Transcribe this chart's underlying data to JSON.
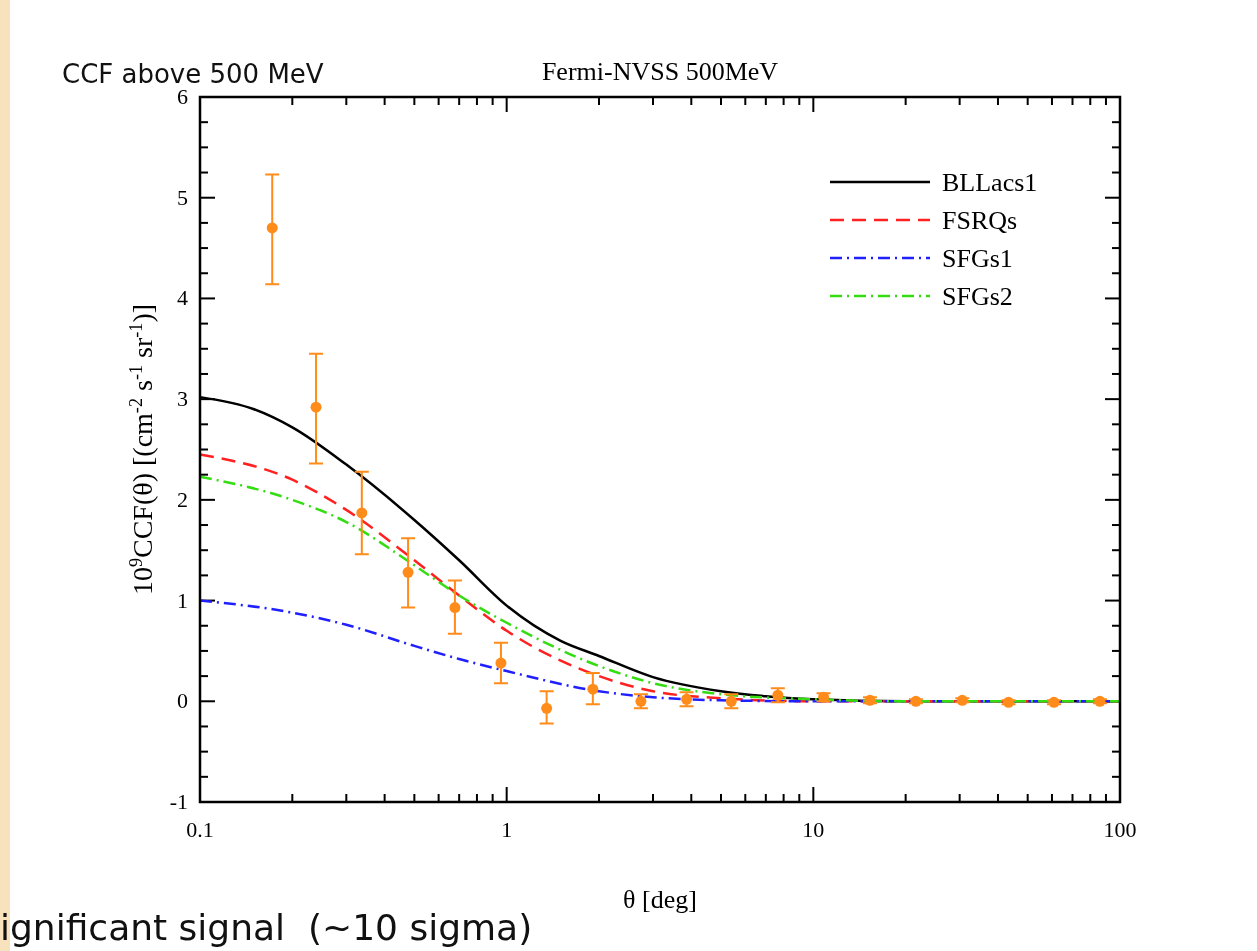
{
  "chart_data": {
    "type": "line",
    "title": "Fermi-NVSS 500MeV",
    "xlabel": "θ [deg]",
    "ylabel": "10$^{9}$CCF(θ) [(cm$^{-2}$ s$^{-1}$ sr$^{-1}$)]",
    "annotations": [
      "CCF above 500 MeV",
      "ignificant signal  (~10 sigma)"
    ],
    "log": "x",
    "legend": "top right",
    "grid": false,
    "xlim": [
      0.1,
      100
    ],
    "xticks": [
      0.1,
      {
        "value": 0.2,
        "label": null
      },
      {
        "value": 0.3,
        "label": null
      },
      {
        "value": 0.4,
        "label": null
      },
      {
        "value": 0.5,
        "label": null
      },
      {
        "value": 0.6,
        "label": null
      },
      {
        "value": 0.7,
        "label": null
      },
      {
        "value": 0.8,
        "label": null
      },
      {
        "value": 0.9,
        "label": null
      },
      1,
      {
        "value": 2,
        "label": null
      },
      {
        "value": 3,
        "label": null
      },
      {
        "value": 4,
        "label": null
      },
      {
        "value": 5,
        "label": null
      },
      {
        "value": 6,
        "label": null
      },
      {
        "value": 7,
        "label": null
      },
      {
        "value": 8,
        "label": null
      },
      {
        "value": 9,
        "label": null
      },
      10,
      {
        "value": 20,
        "label": null
      },
      {
        "value": 30,
        "label": null
      },
      {
        "value": 40,
        "label": null
      },
      {
        "value": 50,
        "label": null
      },
      {
        "value": 60,
        "label": null
      },
      {
        "value": 70,
        "label": null
      },
      {
        "value": 80,
        "label": null
      },
      {
        "value": 90,
        "label": null
      },
      100
    ],
    "ylim": [
      -1,
      6
    ],
    "yticks": [
      -1,
      {
        "value": -0.75,
        "label": null
      },
      {
        "value": -0.5,
        "label": null
      },
      {
        "value": -0.25,
        "label": null
      },
      0,
      {
        "value": 0.25,
        "label": null
      },
      {
        "value": 0.5,
        "label": null
      },
      {
        "value": 0.75,
        "label": null
      },
      1,
      {
        "value": 1.25,
        "label": null
      },
      {
        "value": 1.5,
        "label": null
      },
      {
        "value": 1.75,
        "label": null
      },
      2,
      {
        "value": 2.25,
        "label": null
      },
      {
        "value": 2.5,
        "label": null
      },
      {
        "value": 2.75,
        "label": null
      },
      3,
      {
        "value": 3.25,
        "label": null
      },
      {
        "value": 3.5,
        "label": null
      },
      {
        "value": 3.75,
        "label": null
      },
      4,
      {
        "value": 4.25,
        "label": null
      },
      {
        "value": 4.5,
        "label": null
      },
      {
        "value": 4.75,
        "label": null
      },
      5,
      {
        "value": 5.25,
        "label": null
      },
      {
        "value": 5.5,
        "label": null
      },
      {
        "value": 5.75,
        "label": null
      },
      6
    ],
    "series": [
      {
        "name": "BLLacs1",
        "color": "#000000",
        "line_style": "solid",
        "x": [
          0.1,
          0.15,
          0.2,
          0.3,
          0.5,
          0.7,
          1,
          1.5,
          2,
          3,
          5,
          7,
          10,
          20,
          100
        ],
        "values": [
          3.02,
          2.9,
          2.72,
          2.35,
          1.8,
          1.4,
          0.95,
          0.6,
          0.45,
          0.24,
          0.1,
          0.05,
          0.02,
          0,
          0
        ]
      },
      {
        "name": "FSRQs",
        "color": "#ff2020",
        "line_style": "dashed",
        "x": [
          0.1,
          0.2,
          0.3,
          0.5,
          0.7,
          1,
          2,
          3,
          5,
          10,
          100
        ],
        "values": [
          2.45,
          2.2,
          1.9,
          1.4,
          1.05,
          0.7,
          0.25,
          0.1,
          0.03,
          0,
          0
        ]
      },
      {
        "name": "SFGs1",
        "color": "#2020ff",
        "line_style": "dashdot",
        "x": [
          0.1,
          0.2,
          0.3,
          0.5,
          0.7,
          1,
          2,
          3,
          5,
          10,
          100
        ],
        "values": [
          1.0,
          0.88,
          0.76,
          0.55,
          0.42,
          0.3,
          0.1,
          0.04,
          0.01,
          0,
          0
        ]
      },
      {
        "name": "SFGs2",
        "color": "#33dd11",
        "line_style": "dashdot",
        "x": [
          0.1,
          0.2,
          0.3,
          0.5,
          0.7,
          1,
          2,
          3,
          5,
          10,
          20,
          100
        ],
        "values": [
          2.23,
          2.0,
          1.78,
          1.35,
          1.05,
          0.78,
          0.35,
          0.18,
          0.07,
          0.02,
          0,
          0
        ]
      },
      {
        "type": "scatter",
        "color": "#ff8c1a",
        "marker": "circle",
        "x": [
          0.172,
          0.239,
          0.337,
          0.477,
          0.678,
          0.958,
          1.35,
          1.91,
          2.74,
          3.86,
          5.4,
          7.66,
          10.8,
          15.3,
          21.6,
          30.6,
          43.3,
          60.9,
          86
        ],
        "values": [
          4.7,
          2.92,
          1.87,
          1.28,
          0.93,
          0.38,
          -0.07,
          0.12,
          0,
          0.02,
          0,
          0.06,
          0.04,
          0.01,
          0,
          0.01,
          -0.01,
          -0.01,
          0
        ],
        "errors": [
          [
            4.14,
            5.23
          ],
          [
            2.36,
            3.45
          ],
          [
            1.46,
            2.28
          ],
          [
            0.93,
            1.62
          ],
          [
            0.67,
            1.2
          ],
          [
            0.18,
            0.58
          ],
          [
            -0.22,
            0.1
          ],
          [
            -0.03,
            0.28
          ],
          [
            -0.07,
            0.07
          ],
          [
            -0.05,
            0.09
          ],
          [
            -0.07,
            0.07
          ],
          [
            -0.01,
            0.13
          ],
          [
            0,
            0.08
          ],
          [
            -0.02,
            0.04
          ],
          [
            -0.02,
            0.02
          ],
          [
            -0.01,
            0.03
          ],
          [
            -0.03,
            0.01
          ],
          [
            -0.03,
            0.01
          ],
          [
            -0.02,
            0.02
          ]
        ]
      }
    ]
  }
}
